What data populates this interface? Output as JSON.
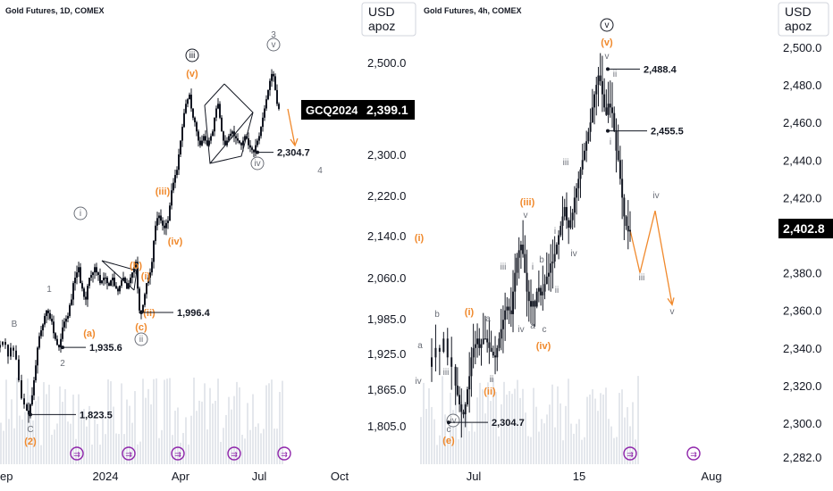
{
  "colors": {
    "candle": "#131722",
    "volume": "#e4e7ec",
    "orange": "#f0892c",
    "gray": "#6b6f78",
    "dark": "#131722",
    "purple": "#8e24aa",
    "tag_bg": "#000000",
    "tag_fg": "#ffffff"
  },
  "chart_data": [
    {
      "type": "candlestick",
      "symbol_label": "Gold Futures, 1D, COMEX",
      "unit_label": [
        "USD",
        "apoz"
      ],
      "y_ticks": [
        "2,500.0",
        "2,300.0",
        "2,220.0",
        "2,140.0",
        "2,060.0",
        "1,985.0",
        "1,925.0",
        "1,865.0",
        "1,805.0"
      ],
      "y_tick_values": [
        2500,
        2300,
        2220,
        2140,
        2060,
        1985,
        1925,
        1865,
        1805
      ],
      "x_ticks": [
        "ep",
        "2024",
        "Apr",
        "Jul",
        "Oct"
      ],
      "current_tag": {
        "symbol": "GCQ2024",
        "price": "2,399.1"
      },
      "callouts": [
        {
          "text": "2,304.7",
          "value": 2304.7
        },
        {
          "text": "1,996.4",
          "value": 1996.4
        },
        {
          "text": "1,935.6",
          "value": 1935.6
        },
        {
          "text": "1,823.5",
          "value": 1823.5
        }
      ],
      "wave_labels": [
        "3",
        "v",
        "iii",
        "(v)",
        "4",
        "iv",
        "(iii)",
        "(iv)",
        "i",
        "1",
        "(b)",
        "(i)",
        "(ii)",
        "(c)",
        "ii",
        "B",
        "(a)",
        "2",
        "C",
        "(2)"
      ],
      "path": [
        [
          0,
          1935
        ],
        [
          3,
          1940
        ],
        [
          6,
          1945
        ],
        [
          9,
          1940
        ],
        [
          12,
          1920
        ],
        [
          15,
          1935
        ],
        [
          18,
          1930
        ],
        [
          21,
          1915
        ],
        [
          24,
          1880
        ],
        [
          27,
          1850
        ],
        [
          30,
          1840
        ],
        [
          32,
          1830
        ],
        [
          34,
          1823.5
        ],
        [
          36,
          1840
        ],
        [
          38,
          1855
        ],
        [
          40,
          1880
        ],
        [
          42,
          1905
        ],
        [
          44,
          1935
        ],
        [
          46,
          1955
        ],
        [
          48,
          1965
        ],
        [
          50,
          1975
        ],
        [
          52,
          1990
        ],
        [
          54,
          2000
        ],
        [
          56,
          1995
        ],
        [
          58,
          1985
        ],
        [
          60,
          1980
        ],
        [
          62,
          1960
        ],
        [
          64,
          1950
        ],
        [
          66,
          1940
        ],
        [
          68,
          1935.6
        ],
        [
          70,
          1950
        ],
        [
          72,
          1970
        ],
        [
          74,
          1980
        ],
        [
          76,
          1985
        ],
        [
          78,
          1990
        ],
        [
          80,
          2010
        ],
        [
          82,
          2020
        ],
        [
          84,
          2050
        ],
        [
          86,
          2060
        ],
        [
          88,
          2070
        ],
        [
          90,
          2080
        ],
        [
          92,
          2050
        ],
        [
          94,
          2040
        ],
        [
          96,
          2025
        ],
        [
          98,
          2020
        ],
        [
          100,
          2045
        ],
        [
          102,
          2060
        ],
        [
          104,
          2065
        ],
        [
          106,
          2070
        ],
        [
          108,
          2080
        ],
        [
          110,
          2070
        ],
        [
          112,
          2065
        ],
        [
          114,
          2050
        ],
        [
          116,
          2055
        ],
        [
          118,
          2060
        ],
        [
          120,
          2060
        ],
        [
          122,
          2050
        ],
        [
          124,
          2045
        ],
        [
          126,
          2055
        ],
        [
          128,
          2060
        ],
        [
          130,
          2045
        ],
        [
          132,
          2040
        ],
        [
          134,
          2035
        ],
        [
          136,
          2045
        ],
        [
          138,
          2055
        ],
        [
          140,
          2060
        ],
        [
          142,
          2050
        ],
        [
          144,
          2040
        ],
        [
          146,
          2050
        ],
        [
          148,
          2060
        ],
        [
          150,
          2070
        ],
        [
          152,
          2080
        ],
        [
          154,
          2090
        ],
        [
          156,
          2040
        ],
        [
          158,
          2000
        ],
        [
          160,
          1996.4
        ],
        [
          162,
          2010
        ],
        [
          164,
          2030
        ],
        [
          166,
          2050
        ],
        [
          168,
          2060
        ],
        [
          170,
          2070
        ],
        [
          172,
          2090
        ],
        [
          174,
          2130
        ],
        [
          176,
          2160
        ],
        [
          178,
          2175
        ],
        [
          180,
          2180
        ],
        [
          182,
          2170
        ],
        [
          184,
          2160
        ],
        [
          186,
          2155
        ],
        [
          188,
          2165
        ],
        [
          190,
          2170
        ],
        [
          192,
          2200
        ],
        [
          194,
          2230
        ],
        [
          196,
          2245
        ],
        [
          198,
          2260
        ],
        [
          200,
          2270
        ],
        [
          202,
          2300
        ],
        [
          204,
          2330
        ],
        [
          206,
          2360
        ],
        [
          208,
          2390
        ],
        [
          210,
          2410
        ],
        [
          212,
          2420
        ],
        [
          214,
          2430
        ],
        [
          216,
          2400
        ],
        [
          218,
          2380
        ],
        [
          220,
          2370
        ],
        [
          222,
          2350
        ],
        [
          224,
          2330
        ],
        [
          226,
          2320
        ],
        [
          228,
          2330
        ],
        [
          230,
          2340
        ],
        [
          232,
          2330
        ],
        [
          234,
          2320
        ],
        [
          236,
          2330
        ],
        [
          238,
          2340
        ],
        [
          240,
          2350
        ],
        [
          242,
          2380
        ],
        [
          244,
          2400
        ],
        [
          246,
          2410
        ],
        [
          248,
          2380
        ],
        [
          250,
          2350
        ],
        [
          252,
          2330
        ],
        [
          254,
          2320
        ],
        [
          256,
          2330
        ],
        [
          258,
          2340
        ],
        [
          260,
          2345
        ],
        [
          262,
          2350
        ],
        [
          264,
          2340
        ],
        [
          266,
          2335
        ],
        [
          268,
          2330
        ],
        [
          270,
          2325
        ],
        [
          272,
          2320
        ],
        [
          274,
          2330
        ],
        [
          276,
          2340
        ],
        [
          278,
          2335
        ],
        [
          280,
          2320
        ],
        [
          282,
          2315
        ],
        [
          284,
          2310
        ],
        [
          286,
          2304.7
        ],
        [
          288,
          2320
        ],
        [
          290,
          2330
        ],
        [
          292,
          2340
        ],
        [
          294,
          2360
        ],
        [
          296,
          2380
        ],
        [
          298,
          2400
        ],
        [
          300,
          2420
        ],
        [
          302,
          2440
        ],
        [
          304,
          2460
        ],
        [
          306,
          2475
        ],
        [
          308,
          2470
        ],
        [
          310,
          2440
        ],
        [
          312,
          2410
        ],
        [
          314,
          2399.1
        ]
      ]
    },
    {
      "type": "candlestick",
      "symbol_label": "Gold Futures, 4h, COMEX",
      "unit_label": [
        "USD",
        "apoz"
      ],
      "y_ticks": [
        "2,500.0",
        "2,480.0",
        "2,460.0",
        "2,440.0",
        "2,420.0",
        "2,380.0",
        "2,360.0",
        "2,340.0",
        "2,320.0",
        "2,300.0",
        "2,282.0"
      ],
      "y_tick_values": [
        2500,
        2480,
        2460,
        2440,
        2420,
        2380,
        2360,
        2340,
        2320,
        2300,
        2282
      ],
      "x_ticks": [
        "Jul",
        "15",
        "Aug"
      ],
      "current_price": "2,402.8",
      "callouts": [
        {
          "text": "2,488.4",
          "value": 2488.4
        },
        {
          "text": "2,455.5",
          "value": 2455.5
        },
        {
          "text": "2,304.7",
          "value": 2304.7
        }
      ],
      "wave_labels": [
        "v",
        "(v)",
        "v",
        "ii",
        "i",
        "iii",
        "iv",
        "iii",
        "(iii)",
        "v",
        "i",
        "iv",
        "b",
        "iii",
        "i",
        "ii",
        "iv",
        "a",
        "c",
        "(iv)",
        "ii",
        "(i)",
        "(ii)",
        "ii",
        "b",
        "a",
        "iv",
        "(e)",
        "iii",
        "iv",
        "v",
        "(i)",
        "c",
        "a"
      ],
      "path": [
        [
          0,
          2330
        ],
        [
          4,
          2335
        ],
        [
          8,
          2340
        ],
        [
          12,
          2338
        ],
        [
          16,
          2345
        ],
        [
          20,
          2335
        ],
        [
          24,
          2330
        ],
        [
          26,
          2320
        ],
        [
          28,
          2315
        ],
        [
          30,
          2310
        ],
        [
          32,
          2306
        ],
        [
          34,
          2304.7
        ],
        [
          36,
          2310
        ],
        [
          38,
          2318
        ],
        [
          40,
          2325
        ],
        [
          42,
          2335
        ],
        [
          44,
          2340
        ],
        [
          46,
          2342
        ],
        [
          48,
          2345
        ],
        [
          50,
          2340
        ],
        [
          52,
          2342
        ],
        [
          54,
          2345
        ],
        [
          56,
          2345
        ],
        [
          58,
          2343
        ],
        [
          60,
          2340
        ],
        [
          62,
          2338
        ],
        [
          64,
          2336
        ],
        [
          66,
          2335
        ],
        [
          68,
          2340
        ],
        [
          70,
          2345
        ],
        [
          72,
          2350
        ],
        [
          74,
          2355
        ],
        [
          76,
          2360
        ],
        [
          78,
          2362
        ],
        [
          80,
          2360
        ],
        [
          82,
          2358
        ],
        [
          84,
          2370
        ],
        [
          86,
          2380
        ],
        [
          88,
          2388
        ],
        [
          90,
          2392
        ],
        [
          92,
          2395
        ],
        [
          94,
          2390
        ],
        [
          96,
          2380
        ],
        [
          98,
          2370
        ],
        [
          100,
          2365
        ],
        [
          102,
          2362
        ],
        [
          104,
          2365
        ],
        [
          106,
          2362
        ],
        [
          108,
          2370
        ],
        [
          110,
          2372
        ],
        [
          112,
          2368
        ],
        [
          114,
          2370
        ],
        [
          116,
          2374
        ],
        [
          118,
          2378
        ],
        [
          120,
          2380
        ],
        [
          122,
          2385
        ],
        [
          124,
          2386
        ],
        [
          126,
          2390
        ],
        [
          128,
          2395
        ],
        [
          130,
          2400
        ],
        [
          132,
          2405
        ],
        [
          134,
          2410
        ],
        [
          136,
          2415
        ],
        [
          138,
          2408
        ],
        [
          140,
          2404
        ],
        [
          142,
          2408
        ],
        [
          144,
          2412
        ],
        [
          146,
          2420
        ],
        [
          148,
          2425
        ],
        [
          150,
          2430
        ],
        [
          152,
          2435
        ],
        [
          154,
          2440
        ],
        [
          156,
          2445
        ],
        [
          158,
          2450
        ],
        [
          160,
          2455
        ],
        [
          162,
          2460
        ],
        [
          164,
          2468
        ],
        [
          166,
          2475
        ],
        [
          168,
          2480
        ],
        [
          170,
          2485
        ],
        [
          172,
          2482
        ],
        [
          174,
          2475
        ],
        [
          176,
          2468
        ],
        [
          178,
          2464
        ],
        [
          180,
          2470
        ],
        [
          182,
          2468
        ],
        [
          184,
          2465
        ],
        [
          186,
          2455.5
        ],
        [
          188,
          2445
        ],
        [
          190,
          2440
        ],
        [
          192,
          2430
        ],
        [
          194,
          2420
        ],
        [
          196,
          2410
        ],
        [
          198,
          2405
        ],
        [
          200,
          2402
        ],
        [
          202,
          2402.8
        ]
      ],
      "projection": [
        [
          2402.8
        ],
        [
          2380
        ],
        [
          2413
        ],
        [
          2363
        ]
      ]
    }
  ]
}
